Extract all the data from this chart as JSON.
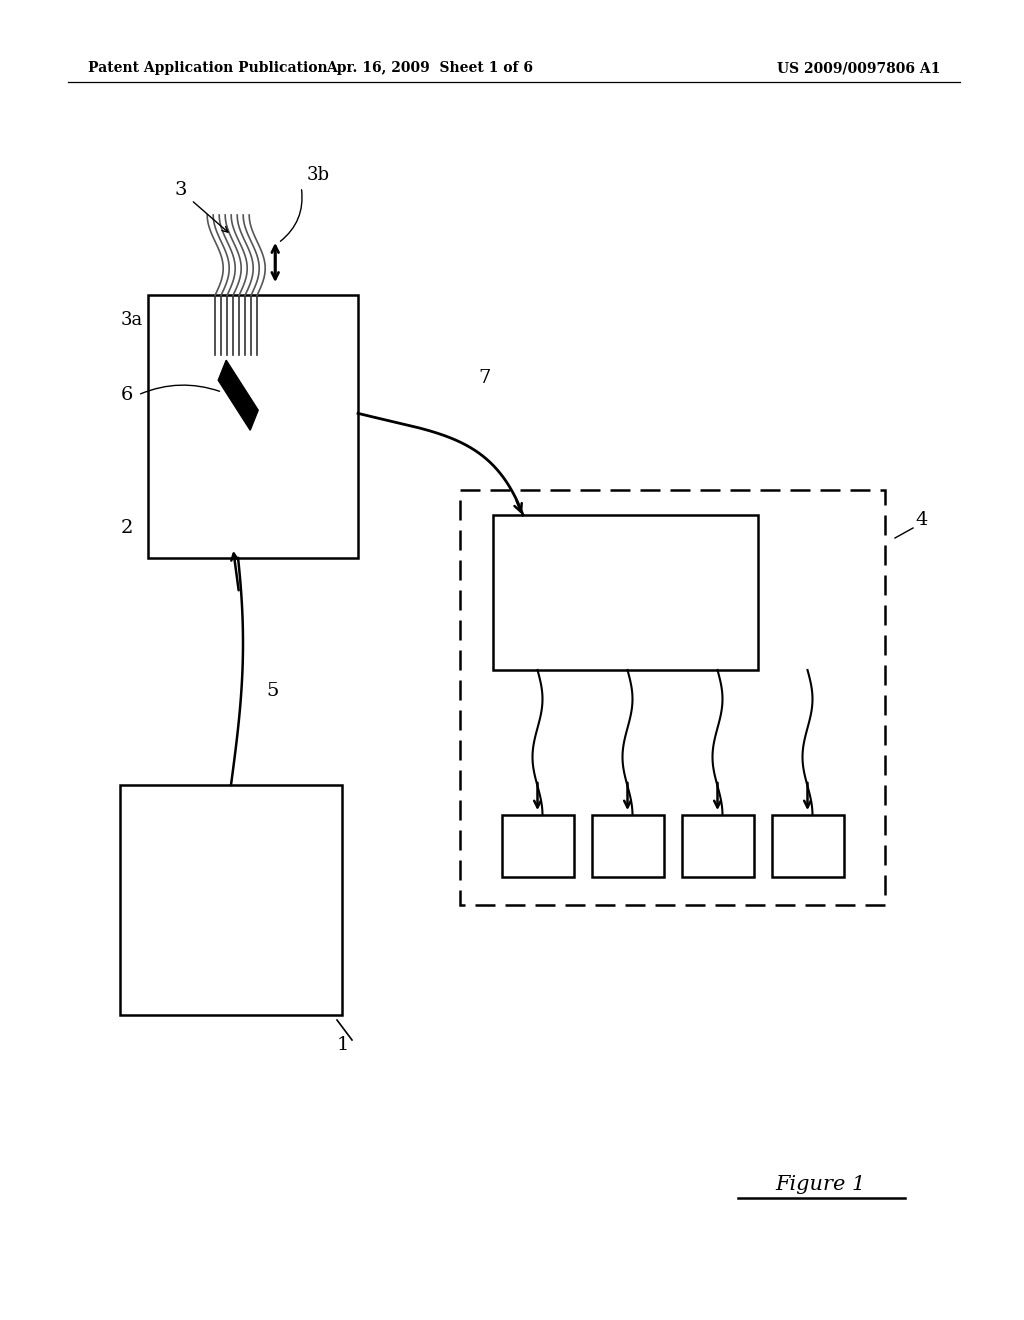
{
  "background_color": "#ffffff",
  "header_left": "Patent Application Publication",
  "header_center": "Apr. 16, 2009  Sheet 1 of 6",
  "header_right": "US 2009/0097806 A1",
  "figure_label": "Figure 1"
}
